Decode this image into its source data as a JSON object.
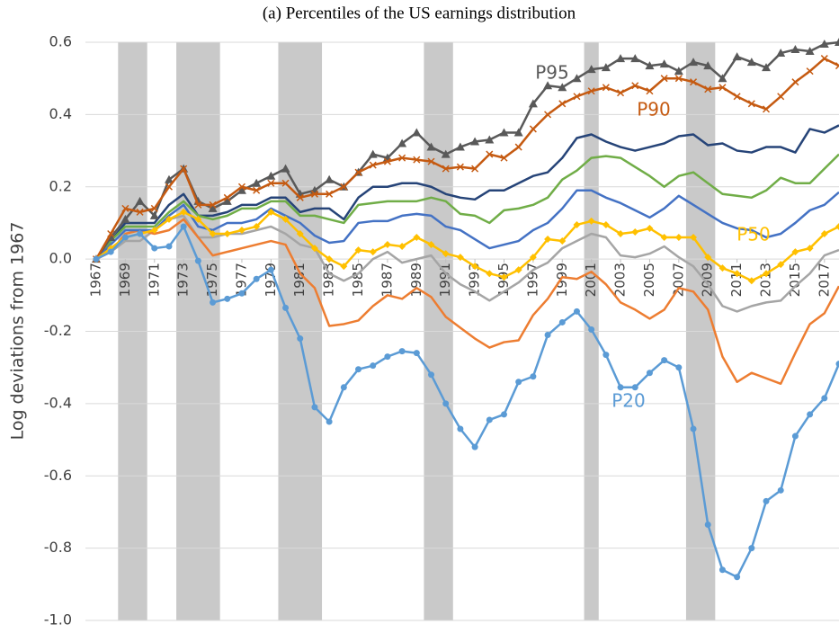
{
  "chart_data": {
    "type": "line",
    "title": "(a) Percentiles of the US earnings distribution",
    "y_label": "Log deviations from 1967",
    "x": [
      1967,
      1968,
      1969,
      1970,
      1971,
      1972,
      1973,
      1974,
      1975,
      1976,
      1977,
      1978,
      1979,
      1980,
      1981,
      1982,
      1983,
      1984,
      1985,
      1986,
      1987,
      1988,
      1989,
      1990,
      1991,
      1992,
      1993,
      1994,
      1995,
      1996,
      1997,
      1998,
      1999,
      2000,
      2001,
      2002,
      2003,
      2004,
      2005,
      2006,
      2007,
      2008,
      2009,
      2010,
      2011,
      2012,
      2013,
      2014,
      2015,
      2016,
      2017,
      2018
    ],
    "xlim": [
      1967,
      2018
    ],
    "xticks": [
      1967,
      1969,
      1971,
      1973,
      1975,
      1977,
      1979,
      1981,
      1983,
      1985,
      1987,
      1989,
      1991,
      1993,
      1995,
      1997,
      1999,
      2001,
      2003,
      2005,
      2007,
      2009,
      2011,
      2013,
      2015,
      2017
    ],
    "ylim": [
      -1,
      0.6
    ],
    "yticks": [
      0.6,
      0.4,
      0.2,
      {
        "value": 0,
        "label": "0.0"
      },
      -0.2,
      -0.4,
      -0.6,
      -0.8,
      {
        "value": -1,
        "label": "-1.0"
      }
    ],
    "grid": true,
    "shaded_periods": [
      [
        1968.5,
        1970.5
      ],
      [
        1972.5,
        1975.5
      ],
      [
        1979.5,
        1982.5
      ],
      [
        1989.5,
        1991.5
      ],
      [
        2000.5,
        2001.5
      ],
      [
        2007.5,
        2009.5
      ]
    ],
    "shade_color": "#c9c9c9",
    "series": [
      {
        "color": "#a5a5a5",
        "values": [
          0,
          0.02,
          0.05,
          0.05,
          0.08,
          0.11,
          0.12,
          0.06,
          0.06,
          0.07,
          0.07,
          0.08,
          0.09,
          0.07,
          0.04,
          0.03,
          -0.04,
          -0.06,
          -0.04,
          0,
          0.02,
          -0.01,
          0,
          0.01,
          -0.04,
          -0.07,
          -0.09,
          -0.115,
          -0.09,
          -0.065,
          -0.03,
          -0.01,
          0.03,
          0.05,
          0.07,
          0.06,
          0.01,
          0.005,
          0.015,
          0.035,
          0.005,
          -0.02,
          -0.07,
          -0.13,
          -0.145,
          -0.13,
          -0.12,
          -0.115,
          -0.075,
          -0.04,
          0.01,
          0.025
        ]
      },
      {
        "color": "#ed7d31",
        "values": [
          0,
          0.02,
          0.07,
          0.08,
          0.07,
          0.08,
          0.11,
          0.06,
          0.01,
          0.02,
          0.03,
          0.04,
          0.05,
          0.04,
          -0.04,
          -0.08,
          -0.185,
          -0.18,
          -0.17,
          -0.13,
          -0.1,
          -0.11,
          -0.08,
          -0.105,
          -0.16,
          -0.19,
          -0.22,
          -0.245,
          -0.23,
          -0.225,
          -0.155,
          -0.11,
          -0.05,
          -0.055,
          -0.035,
          -0.07,
          -0.12,
          -0.14,
          -0.165,
          -0.14,
          -0.08,
          -0.09,
          -0.14,
          -0.27,
          -0.34,
          -0.315,
          -0.33,
          -0.345,
          -0.26,
          -0.18,
          -0.15,
          -0.075
        ]
      },
      {
        "color": "#264478",
        "values": [
          0,
          0.05,
          0.1,
          0.1,
          0.1,
          0.15,
          0.18,
          0.12,
          0.12,
          0.13,
          0.15,
          0.15,
          0.17,
          0.17,
          0.13,
          0.14,
          0.14,
          0.11,
          0.17,
          0.2,
          0.2,
          0.21,
          0.21,
          0.2,
          0.18,
          0.17,
          0.165,
          0.19,
          0.19,
          0.21,
          0.23,
          0.24,
          0.28,
          0.335,
          0.345,
          0.325,
          0.31,
          0.3,
          0.31,
          0.32,
          0.34,
          0.345,
          0.315,
          0.32,
          0.3,
          0.295,
          0.31,
          0.31,
          0.295,
          0.36,
          0.35,
          0.37
        ]
      },
      {
        "color": "#70ad47",
        "values": [
          0,
          0.05,
          0.09,
          0.09,
          0.09,
          0.13,
          0.16,
          0.12,
          0.11,
          0.12,
          0.14,
          0.14,
          0.16,
          0.16,
          0.12,
          0.12,
          0.11,
          0.1,
          0.15,
          0.155,
          0.16,
          0.16,
          0.16,
          0.17,
          0.16,
          0.125,
          0.12,
          0.1,
          0.135,
          0.14,
          0.15,
          0.17,
          0.22,
          0.245,
          0.28,
          0.285,
          0.28,
          0.255,
          0.23,
          0.2,
          0.23,
          0.24,
          0.21,
          0.18,
          0.175,
          0.17,
          0.19,
          0.225,
          0.21,
          0.21,
          0.25,
          0.29
        ]
      },
      {
        "color": "#4472c4",
        "values": [
          0,
          0.04,
          0.08,
          0.08,
          0.08,
          0.12,
          0.15,
          0.09,
          0.08,
          0.1,
          0.1,
          0.11,
          0.14,
          0.12,
          0.1,
          0.065,
          0.045,
          0.05,
          0.1,
          0.105,
          0.105,
          0.12,
          0.125,
          0.12,
          0.09,
          0.08,
          0.055,
          0.03,
          0.04,
          0.05,
          0.08,
          0.1,
          0.14,
          0.19,
          0.19,
          0.17,
          0.155,
          0.135,
          0.115,
          0.14,
          0.175,
          0.15,
          0.125,
          0.1,
          0.085,
          0.08,
          0.06,
          0.07,
          0.1,
          0.135,
          0.15,
          0.185
        ]
      },
      {
        "name": "P95",
        "color": "#595959",
        "marker": "triangle",
        "values": [
          0,
          0.06,
          0.11,
          0.16,
          0.12,
          0.22,
          0.25,
          0.16,
          0.14,
          0.16,
          0.19,
          0.21,
          0.23,
          0.25,
          0.18,
          0.19,
          0.22,
          0.2,
          0.24,
          0.29,
          0.28,
          0.32,
          0.35,
          0.31,
          0.29,
          0.31,
          0.325,
          0.33,
          0.35,
          0.35,
          0.43,
          0.48,
          0.475,
          0.5,
          0.525,
          0.53,
          0.555,
          0.555,
          0.535,
          0.54,
          0.52,
          0.545,
          0.535,
          0.5,
          0.56,
          0.545,
          0.53,
          0.57,
          0.58,
          0.575,
          0.595,
          0.6
        ]
      },
      {
        "name": "P90",
        "color": "#c55a11",
        "marker": "x",
        "values": [
          0,
          0.07,
          0.14,
          0.13,
          0.14,
          0.2,
          0.25,
          0.15,
          0.15,
          0.17,
          0.2,
          0.19,
          0.21,
          0.21,
          0.17,
          0.18,
          0.18,
          0.2,
          0.24,
          0.26,
          0.27,
          0.28,
          0.275,
          0.27,
          0.25,
          0.255,
          0.25,
          0.29,
          0.28,
          0.31,
          0.36,
          0.4,
          0.43,
          0.45,
          0.465,
          0.475,
          0.46,
          0.48,
          0.465,
          0.5,
          0.5,
          0.49,
          0.47,
          0.475,
          0.45,
          0.43,
          0.415,
          0.45,
          0.49,
          0.52,
          0.555,
          0.535
        ]
      },
      {
        "name": "P50",
        "color": "#ffc000",
        "marker": "diamond",
        "values": [
          0,
          0.03,
          0.06,
          0.07,
          0.08,
          0.11,
          0.13,
          0.11,
          0.07,
          0.07,
          0.08,
          0.09,
          0.13,
          0.11,
          0.07,
          0.03,
          0,
          -0.02,
          0.025,
          0.02,
          0.04,
          0.035,
          0.06,
          0.04,
          0.015,
          0.005,
          -0.02,
          -0.04,
          -0.05,
          -0.03,
          0.005,
          0.055,
          0.05,
          0.095,
          0.105,
          0.095,
          0.07,
          0.075,
          0.085,
          0.06,
          0.06,
          0.06,
          0.005,
          -0.025,
          -0.04,
          -0.06,
          -0.04,
          -0.015,
          0.02,
          0.03,
          0.07,
          0.09
        ]
      },
      {
        "name": "P20",
        "color": "#5b9bd5",
        "marker": "circle",
        "values": [
          0,
          0.02,
          0.06,
          0.07,
          0.03,
          0.035,
          0.09,
          -0.005,
          -0.12,
          -0.11,
          -0.095,
          -0.055,
          -0.03,
          -0.135,
          -0.22,
          -0.41,
          -0.45,
          -0.355,
          -0.305,
          -0.295,
          -0.27,
          -0.255,
          -0.26,
          -0.32,
          -0.4,
          -0.47,
          -0.52,
          -0.445,
          -0.43,
          -0.34,
          -0.325,
          -0.21,
          -0.175,
          -0.145,
          -0.195,
          -0.265,
          -0.355,
          -0.355,
          -0.315,
          -0.28,
          -0.3,
          -0.47,
          -0.735,
          -0.86,
          -0.88,
          -0.8,
          -0.67,
          -0.64,
          -0.49,
          -0.43,
          -0.385,
          -0.29
        ]
      }
    ]
  }
}
